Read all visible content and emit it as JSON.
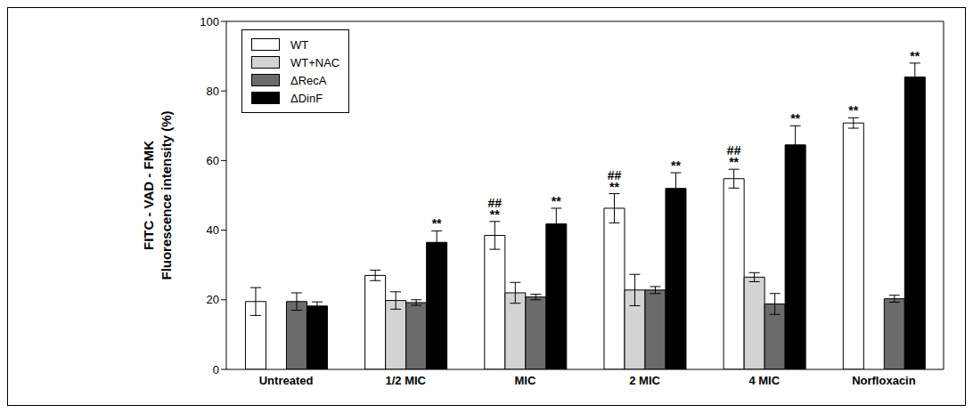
{
  "chart_data": {
    "type": "bar",
    "y_label": [
      "FITC - VAD - FMK",
      "Fluorescence intensity (%)"
    ],
    "categories": [
      "Untreated",
      "1/2 MIC",
      "MIC",
      "2 MIC",
      "4 MIC",
      "Norfloxacin"
    ],
    "ylim": [
      0,
      100
    ],
    "yticks": [
      0,
      20,
      40,
      60,
      80,
      100
    ],
    "legend": "upper left",
    "grid": false,
    "series": [
      {
        "name": "WT",
        "color": "#ffffff",
        "values": [
          19.5,
          27,
          38.5,
          46.3,
          54.8,
          70.8
        ],
        "errors": [
          4,
          1.5,
          4,
          4.2,
          2.7,
          1.5
        ],
        "annotations": [
          null,
          null,
          [
            "**",
            "##"
          ],
          [
            "**",
            "##"
          ],
          [
            "**",
            "##"
          ],
          [
            "**"
          ]
        ]
      },
      {
        "name": "WT+NAC",
        "color": "#d3d3d3",
        "values": [
          null,
          19.8,
          22,
          22.8,
          26.5,
          null
        ],
        "errors": [
          null,
          2.5,
          3,
          4.5,
          1.3,
          null
        ],
        "annotations": [
          null,
          null,
          null,
          null,
          null,
          null
        ]
      },
      {
        "name": "ΔRecA",
        "color": "#6b6b6b",
        "values": [
          19.5,
          19.2,
          20.8,
          22.8,
          18.8,
          20.3
        ],
        "errors": [
          2.5,
          0.8,
          0.8,
          1,
          3,
          1
        ],
        "annotations": [
          null,
          null,
          null,
          null,
          null,
          null
        ]
      },
      {
        "name": "ΔDinF",
        "color": "#000000",
        "values": [
          18.2,
          36.5,
          41.8,
          52,
          64.5,
          84
        ],
        "errors": [
          1.2,
          3.3,
          4.5,
          4.5,
          5.5,
          4
        ],
        "annotations": [
          null,
          [
            "**"
          ],
          [
            "**"
          ],
          [
            "**"
          ],
          [
            "**"
          ],
          [
            "**"
          ]
        ]
      }
    ]
  }
}
